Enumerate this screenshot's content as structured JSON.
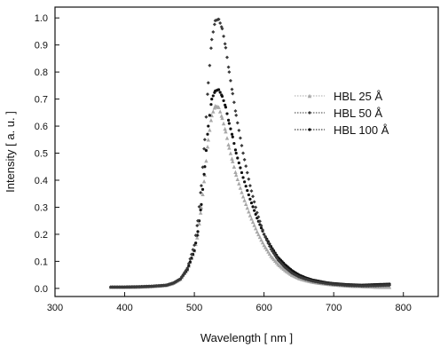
{
  "chart_data": {
    "type": "scatter",
    "xlabel": "Wavelength  [ nm ]",
    "ylabel": "Intensity [ a. u. ]",
    "xlim": [
      300,
      850
    ],
    "ylim": [
      -0.03,
      1.04
    ],
    "xticks": [
      300,
      400,
      500,
      600,
      700,
      800
    ],
    "yticks": [
      0.0,
      0.1,
      0.2,
      0.3,
      0.4,
      0.5,
      0.6,
      0.7,
      0.8,
      0.9,
      1.0
    ],
    "ytick_labels": [
      "0.0",
      "0.1",
      "0.2",
      "0.3",
      "0.4",
      "0.5",
      "0.6",
      "0.7",
      "0.8",
      "0.9",
      "1.0"
    ],
    "grid": false,
    "legend_position": "top-right",
    "x": [
      380,
      400,
      420,
      440,
      460,
      470,
      480,
      490,
      500,
      505,
      510,
      515,
      520,
      525,
      530,
      535,
      540,
      545,
      550,
      555,
      560,
      570,
      580,
      590,
      600,
      610,
      620,
      630,
      640,
      650,
      660,
      670,
      680,
      690,
      700,
      720,
      740,
      760,
      780
    ],
    "series": [
      {
        "name": "HBL   25 Å",
        "marker": "triangle",
        "color": "#a8a8a8",
        "values": [
          0.005,
          0.005,
          0.006,
          0.008,
          0.012,
          0.02,
          0.035,
          0.07,
          0.14,
          0.2,
          0.3,
          0.42,
          0.55,
          0.64,
          0.675,
          0.67,
          0.63,
          0.58,
          0.52,
          0.47,
          0.42,
          0.34,
          0.27,
          0.21,
          0.16,
          0.12,
          0.09,
          0.068,
          0.05,
          0.038,
          0.03,
          0.024,
          0.02,
          0.017,
          0.014,
          0.01,
          0.008,
          0.006,
          0.005
        ]
      },
      {
        "name": "HBL   50 Å",
        "marker": "diamond",
        "color": "#3a3a3a",
        "values": [
          0.005,
          0.005,
          0.006,
          0.008,
          0.012,
          0.02,
          0.035,
          0.075,
          0.16,
          0.25,
          0.38,
          0.55,
          0.76,
          0.92,
          0.99,
          0.995,
          0.96,
          0.89,
          0.8,
          0.72,
          0.64,
          0.5,
          0.38,
          0.28,
          0.2,
          0.145,
          0.105,
          0.078,
          0.057,
          0.043,
          0.034,
          0.027,
          0.022,
          0.018,
          0.015,
          0.011,
          0.009,
          0.01,
          0.012
        ]
      },
      {
        "name": "HBL 100 Å",
        "marker": "circle",
        "color": "#111111",
        "values": [
          0.005,
          0.005,
          0.006,
          0.008,
          0.012,
          0.02,
          0.035,
          0.07,
          0.14,
          0.21,
          0.31,
          0.45,
          0.6,
          0.7,
          0.73,
          0.735,
          0.71,
          0.67,
          0.61,
          0.56,
          0.5,
          0.41,
          0.33,
          0.26,
          0.2,
          0.155,
          0.115,
          0.088,
          0.066,
          0.05,
          0.039,
          0.031,
          0.026,
          0.021,
          0.018,
          0.014,
          0.012,
          0.014,
          0.016
        ]
      }
    ]
  }
}
